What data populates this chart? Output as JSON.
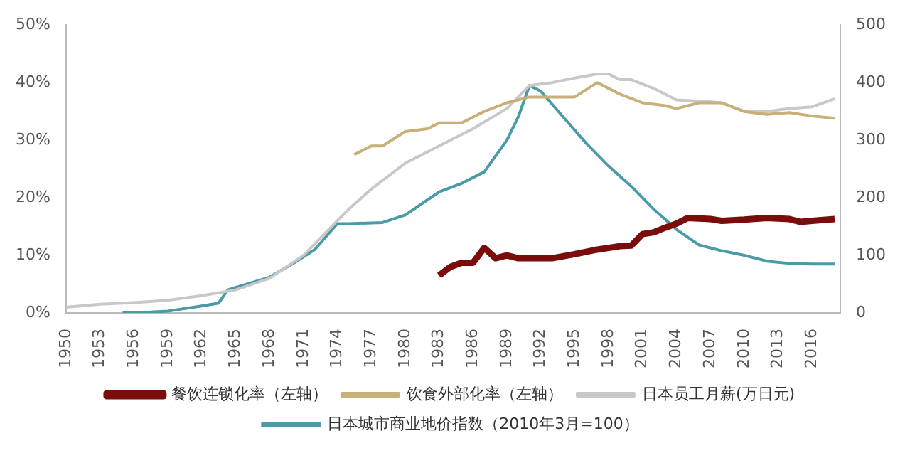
{
  "chart_data": {
    "type": "line",
    "legend": "bottom",
    "grid": false,
    "marker": "none",
    "xlim": [
      1950,
      2018.5
    ],
    "xticks": [
      1950,
      1953,
      1956,
      1959,
      1962,
      1965,
      1968,
      1971,
      1974,
      1977,
      1980,
      1983,
      1986,
      1989,
      1992,
      1995,
      1998,
      2001,
      2004,
      2007,
      2010,
      2013,
      2016
    ],
    "ylim": [
      0,
      50
    ],
    "yticks": [
      {
        "value": 0,
        "label": "0%"
      },
      {
        "value": 10,
        "label": "10%"
      },
      {
        "value": 20,
        "label": "20%"
      },
      {
        "value": 30,
        "label": "30%"
      },
      {
        "value": 40,
        "label": "40%"
      },
      {
        "value": 50,
        "label": "50%"
      }
    ],
    "y2lim": [
      0,
      500
    ],
    "y2ticks": [
      0,
      100,
      200,
      300,
      400,
      500
    ],
    "series": [
      {
        "name": "餐饮连锁化率（左轴）",
        "color": "#7b0c0c",
        "x": [
          1983,
          1984,
          1985,
          1986,
          1987,
          1988,
          1989,
          1990,
          1991,
          1993,
          1995,
          1997,
          1999,
          2000,
          2001,
          2002,
          2003,
          2004,
          2005,
          2007,
          2008,
          2010,
          2012,
          2014,
          2015,
          2016,
          2018
        ],
        "values": [
          6.5,
          8,
          8.7,
          8.7,
          11.3,
          9.5,
          10,
          9.5,
          9.5,
          9.5,
          10.2,
          11,
          11.6,
          11.7,
          13.7,
          14,
          14.8,
          15.5,
          16.5,
          16.3,
          16,
          16.2,
          16.5,
          16.3,
          15.8,
          16,
          16.3
        ]
      },
      {
        "name": "饮食外部化率（左轴）",
        "color": "#c9b07a",
        "x": [
          1975.5,
          1977,
          1978,
          1980,
          1982,
          1983,
          1985,
          1987,
          1989,
          1991,
          1993,
          1995,
          1997,
          1999,
          2001,
          2003,
          2004,
          2006,
          2008,
          2010,
          2012,
          2014,
          2016,
          2018
        ],
        "values": [
          27.5,
          29,
          29,
          31.5,
          32,
          33,
          33,
          35,
          36.5,
          37.5,
          37.5,
          37.5,
          40,
          38,
          36.5,
          36,
          35.5,
          36.5,
          36.5,
          35,
          34.5,
          34.8,
          34.2,
          33.8
        ]
      },
      {
        "name": "日本员工月薪(万日元)",
        "color": "#c8c8c8",
        "axis": "y2",
        "x": [
          1950,
          1953,
          1956,
          1959,
          1962,
          1965,
          1968,
          1971,
          1974,
          1975,
          1977,
          1980,
          1983,
          1986,
          1989,
          1991,
          1993,
          1995,
          1997,
          1998,
          1999,
          2000,
          2002,
          2004,
          2006,
          2008,
          2010,
          2012,
          2014,
          2016,
          2018
        ],
        "values": [
          10,
          15,
          18,
          22,
          30,
          40,
          60,
          100,
          160,
          180,
          215,
          260,
          290,
          320,
          355,
          395,
          400,
          408,
          415,
          415,
          405,
          405,
          390,
          370,
          368,
          365,
          350,
          350,
          355,
          358,
          372
        ]
      },
      {
        "name": "日本城市商业地价指数（2010年3月=100）",
        "color": "#4a9aa8",
        "axis": "y2",
        "x": [
          1955,
          1956,
          1959,
          1962,
          1963.5,
          1964.3,
          1966,
          1968,
          1970,
          1972,
          1974,
          1975,
          1978,
          1980,
          1983,
          1985,
          1987,
          1989,
          1990,
          1991,
          1992,
          1994,
          1996,
          1998,
          2000,
          2002,
          2004,
          2006,
          2008,
          2010,
          2012,
          2014,
          2016,
          2018
        ],
        "values": [
          0,
          0,
          3,
          12,
          17,
          40,
          50,
          62,
          85,
          110,
          155,
          155,
          157,
          170,
          210,
          225,
          245,
          300,
          340,
          395,
          385,
          340,
          295,
          255,
          220,
          180,
          145,
          118,
          108,
          100,
          90,
          86,
          85,
          85
        ]
      }
    ]
  }
}
